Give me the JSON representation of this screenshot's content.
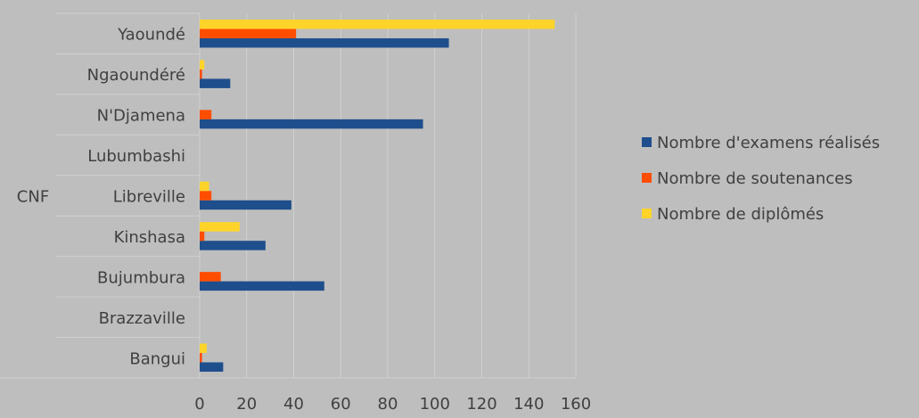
{
  "chart_data": {
    "type": "bar",
    "orientation": "horizontal",
    "group_label": "CNF",
    "categories": [
      "Yaoundé",
      "Ngaoundéré",
      "N'Djamena",
      "Lubumbashi",
      "Libreville",
      "Kinshasa",
      "Bujumbura",
      "Brazzaville",
      "Bangui"
    ],
    "series": [
      {
        "name": "Nombre d'examens réalisés",
        "color": "#1f4e8c",
        "values": [
          106,
          13,
          95,
          0,
          39,
          28,
          53,
          0,
          10
        ]
      },
      {
        "name": "Nombre de soutenances",
        "color": "#ff4d00",
        "values": [
          41,
          1,
          5,
          0,
          5,
          2,
          9,
          0,
          1
        ]
      },
      {
        "name": "Nombre de diplômés",
        "color": "#ffd42a",
        "values": [
          151,
          2,
          0,
          0,
          4,
          17,
          0,
          0,
          3
        ]
      }
    ],
    "xlim": [
      0,
      160
    ],
    "xticks": [
      0,
      20,
      40,
      60,
      80,
      100,
      120,
      140,
      160
    ],
    "grid": true,
    "legend_position": "right"
  }
}
